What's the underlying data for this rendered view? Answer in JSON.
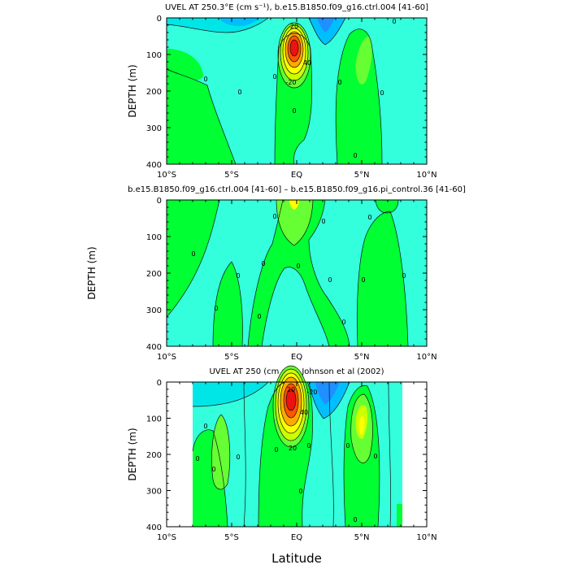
{
  "chart_data": [
    {
      "type": "contour",
      "title": "UVEL AT 250.3°E (cm s⁻¹), b.e15.B1850.f09_g16.ctrl.004 [41-60]",
      "ylabel": "DEPTH (m)",
      "xlabel": "",
      "x_ticks": [
        "10°S",
        "5°S",
        "EQ",
        "5°N",
        "10°N"
      ],
      "x_tick_values": [
        -10,
        -5,
        0,
        5,
        10
      ],
      "y_ticks": [
        "0",
        "100",
        "200",
        "300",
        "400"
      ],
      "y_tick_values": [
        0,
        100,
        200,
        300,
        400
      ],
      "xlim": [
        -10,
        10
      ],
      "ylim": [
        400,
        0
      ],
      "core": {
        "lat": 0,
        "depth": 85,
        "max": 120
      },
      "contour_labels": [
        "20",
        "40",
        "-20",
        "0",
        "0",
        "0",
        "0",
        "0",
        "0",
        "0",
        "0"
      ]
    },
    {
      "type": "contour",
      "title": "b.e15.B1850.f09_g16.ctrl.004 [41-60] – b.e15.B1850.f09_g16.pi_control.36 [41-60]",
      "ylabel": "DEPTH (m)",
      "xlabel": "",
      "x_ticks": [
        "10°S",
        "5°S",
        "EQ",
        "5°N",
        "10°N"
      ],
      "x_tick_values": [
        -10,
        -5,
        0,
        5,
        10
      ],
      "y_ticks": [
        "0",
        "100",
        "200",
        "300",
        "400"
      ],
      "y_tick_values": [
        0,
        100,
        200,
        300,
        400
      ],
      "xlim": [
        -10,
        10
      ],
      "ylim": [
        400,
        0
      ],
      "contour_labels": [
        "0",
        "0",
        "0",
        "0",
        "0",
        "0",
        "0",
        "0",
        "0",
        "0",
        "0",
        "0",
        "0"
      ]
    },
    {
      "type": "contour",
      "title": "UVEL AT 250 (cm s⁻¹), Johnson et al (2002)",
      "ylabel": "DEPTH (m)",
      "xlabel": "Latitude",
      "x_ticks": [
        "10°S",
        "5°S",
        "EQ",
        "5°N",
        "10°N"
      ],
      "x_tick_values": [
        -10,
        -5,
        0,
        5,
        10
      ],
      "y_ticks": [
        "0",
        "100",
        "200",
        "300",
        "400"
      ],
      "y_tick_values": [
        0,
        100,
        200,
        300,
        400
      ],
      "xlim": [
        -10,
        10
      ],
      "ylim": [
        400,
        0
      ],
      "data_lat_range": [
        -8,
        8
      ],
      "core": {
        "lat": -0.3,
        "depth": 75,
        "max": 100
      },
      "contour_labels": [
        "20",
        "40",
        "-20",
        "20",
        "0",
        "0",
        "0",
        "0",
        "0",
        "0",
        "0",
        "0",
        "0",
        "0"
      ]
    }
  ],
  "colors": {
    "cyan_light": "#33ffdd",
    "cyan": "#00e6e6",
    "cyan_blue": "#00bfff",
    "blue": "#1e90ff",
    "green": "#00ff33",
    "green_light": "#66ff33",
    "yellow_green": "#ccff00",
    "yellow": "#ffff00",
    "orange": "#ffaa00",
    "red_orange": "#ff5500",
    "red": "#ee1111"
  }
}
